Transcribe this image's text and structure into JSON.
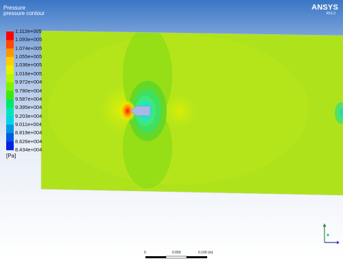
{
  "header": {
    "title": "Pressure",
    "subtitle": "pressure contour"
  },
  "brand": {
    "name": "ANSYS",
    "version": "R16.2"
  },
  "legend": {
    "ticks": [
      "1.112e+005",
      "1.093e+005",
      "1.074e+005",
      "1.055e+005",
      "1.036e+005",
      "1.016e+005",
      "9.972e+004",
      "9.780e+004",
      "9.587e+004",
      "9.395e+004",
      "9.203e+004",
      "9.011e+004",
      "8.819e+004",
      "8.626e+004",
      "8.434e+004"
    ],
    "colors": [
      "#ff0000",
      "#ff4a00",
      "#ff9500",
      "#ffcc00",
      "#e8f000",
      "#b6f500",
      "#7ff200",
      "#3ee80b",
      "#00e66a",
      "#00e6b8",
      "#00d4e6",
      "#0096e6",
      "#0058e6",
      "#0022e0",
      "#0000d8"
    ],
    "units": "[Pa]"
  },
  "scale_bar": {
    "labels": [
      "0",
      "0.050",
      "0.100  (m)"
    ]
  },
  "colors": {
    "domain_base": "#aee31b",
    "body": "#a9b7e6"
  }
}
